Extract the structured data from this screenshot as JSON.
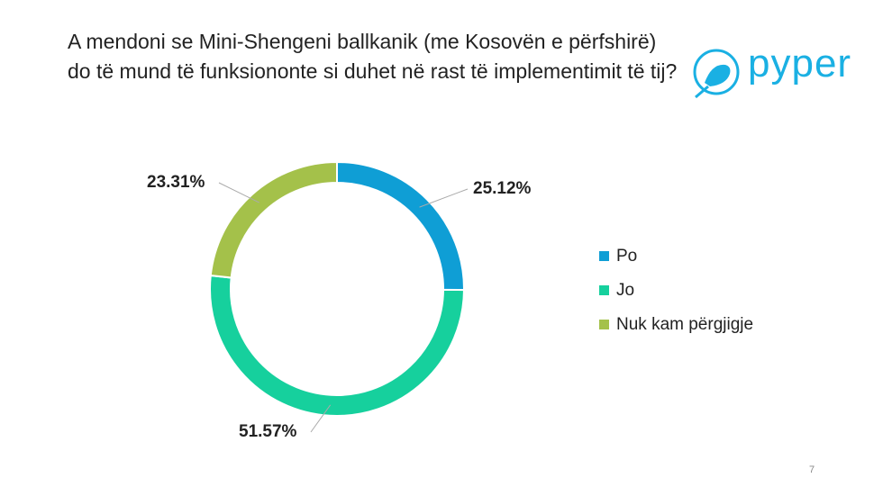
{
  "chart_data": {
    "type": "donut",
    "title": "A mendoni se Mini-Shengeni ballkanik (me Kosovën e përfshirë) do të mund të funksiononte si duhet në rast të implementimit të tij?",
    "categories": [
      "Po",
      "Jo",
      "Nuk kam përgjigje"
    ],
    "values": [
      25.12,
      51.57,
      23.31
    ],
    "value_labels": [
      "25.12%",
      "51.57%",
      "23.31%"
    ],
    "colors": [
      "#0f9ed5",
      "#16d09d",
      "#a4c14a"
    ],
    "legend": "right"
  },
  "logo_text": "pyper",
  "page_number": "7"
}
